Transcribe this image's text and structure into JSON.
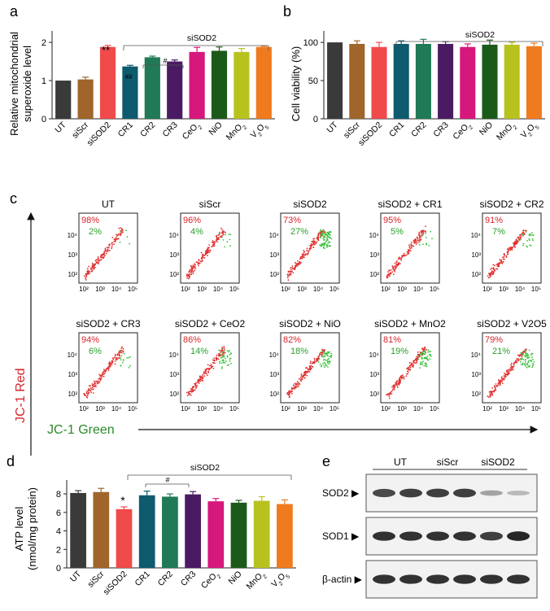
{
  "colors": [
    "#3a3a3a",
    "#a0652a",
    "#f04a4a",
    "#0e5a6e",
    "#1f7a55",
    "#4a1b63",
    "#d6177c",
    "#1c5a1a",
    "#b8c21f",
    "#f07a1e"
  ],
  "panel_letters": {
    "a": "a",
    "b": "b",
    "c": "c",
    "d": "d",
    "e": "e"
  },
  "panels": {
    "a": {
      "ylabel_1": "Relative mitochondrial",
      "ylabel_2": "superoxide level",
      "bracket": "siSOD2",
      "sig_star": "**",
      "sig_hash": "##",
      "sig_bracket_hash": "#"
    },
    "b": {
      "ylabel": "Cell viability (%)",
      "bracket": "siSOD2"
    },
    "d": {
      "ylabel_1": "ATP level",
      "ylabel_2": "(nmol/mg protein)",
      "bracket": "siSOD2",
      "sig_star": "*",
      "sig_bracket_hash": "#"
    }
  },
  "category_labels": [
    "UT",
    "siScr",
    "siSOD2",
    "CR1",
    "CR2",
    "CR3",
    "CeO2",
    "NiO",
    "MnO2",
    "V2O5"
  ],
  "chart_data": [
    {
      "type": "bar",
      "panel": "a",
      "ylabel": "Relative mitochondrial superoxide level",
      "ylim": [
        0,
        2.3
      ],
      "yticks": [
        "0",
        "1",
        "2"
      ],
      "categories": [
        "UT",
        "siScr",
        "siSOD2",
        "CR1",
        "CR2",
        "CR3",
        "CeO2",
        "NiO",
        "MnO2",
        "V2O5"
      ],
      "values": [
        1.0,
        1.03,
        1.88,
        1.37,
        1.61,
        1.5,
        1.75,
        1.78,
        1.75,
        1.88
      ],
      "errors": [
        0.0,
        0.06,
        0.04,
        0.03,
        0.03,
        0.04,
        0.12,
        0.1,
        0.09,
        0.02
      ]
    },
    {
      "type": "bar",
      "panel": "b",
      "ylabel": "Cell viability (%)",
      "ylim": [
        0,
        115
      ],
      "yticks": [
        "0",
        "50",
        "100"
      ],
      "categories": [
        "UT",
        "siScr",
        "siSOD2",
        "CR1",
        "CR2",
        "CR3",
        "CeO2",
        "NiO",
        "MnO2",
        "V2O5"
      ],
      "values": [
        100,
        98,
        94,
        98,
        98,
        98,
        94,
        97,
        97,
        95
      ],
      "errors": [
        0,
        4,
        6,
        4,
        6,
        3,
        4,
        6,
        3,
        4
      ]
    },
    {
      "type": "bar",
      "panel": "d",
      "ylabel": "ATP level (nmol/mg protein)",
      "ylim": [
        0,
        9.5
      ],
      "yticks": [
        "0",
        "2",
        "4",
        "6",
        "8"
      ],
      "categories": [
        "UT",
        "siScr",
        "siSOD2",
        "CR1",
        "CR2",
        "CR3",
        "CeO2",
        "NiO",
        "MnO2",
        "V2O5"
      ],
      "values": [
        8.1,
        8.2,
        6.35,
        7.85,
        7.7,
        7.95,
        7.2,
        7.05,
        7.25,
        6.9
      ],
      "errors": [
        0.25,
        0.4,
        0.25,
        0.45,
        0.3,
        0.3,
        0.3,
        0.25,
        0.45,
        0.45
      ]
    },
    {
      "type": "scatter",
      "panel": "c",
      "ylabel": "JC-1 Red",
      "xlabel": "JC-1 Green",
      "tick_labels": [
        "10²",
        "10³",
        "10⁴",
        "10⁵"
      ],
      "plots": [
        {
          "title": "UT",
          "red": "98%",
          "green": "2%",
          "red_frac": 0.98
        },
        {
          "title": "siScr",
          "red": "96%",
          "green": "4%",
          "red_frac": 0.96
        },
        {
          "title": "siSOD2",
          "red": "73%",
          "green": "27%",
          "red_frac": 0.73
        },
        {
          "title": "siSOD2 + CR1",
          "red": "95%",
          "green": "5%",
          "red_frac": 0.95
        },
        {
          "title": "siSOD2 + CR2",
          "red": "91%",
          "green": "7%",
          "red_frac": 0.91
        },
        {
          "title": "siSOD2 + CR3",
          "red": "94%",
          "green": "6%",
          "red_frac": 0.94
        },
        {
          "title": "siSOD2 + CeO2",
          "red": "86%",
          "green": "14%",
          "red_frac": 0.86
        },
        {
          "title": "siSOD2 + NiO",
          "red": "82%",
          "green": "18%",
          "red_frac": 0.82
        },
        {
          "title": "siSOD2 + MnO2",
          "red": "81%",
          "green": "19%",
          "red_frac": 0.81
        },
        {
          "title": "siSOD2 + V2O5",
          "red": "79%",
          "green": "21%",
          "red_frac": 0.79
        }
      ]
    }
  ],
  "blot": {
    "groups": [
      "UT",
      "siScr",
      "siSOD2"
    ],
    "rows": [
      "SOD2",
      "SOD1",
      "β-actin"
    ],
    "intensity": [
      [
        0.75,
        0.8,
        0.8,
        0.8,
        0.35,
        0.25
      ],
      [
        0.85,
        0.85,
        0.85,
        0.85,
        0.8,
        0.9
      ],
      [
        0.85,
        0.85,
        0.85,
        0.85,
        0.85,
        0.85
      ]
    ]
  }
}
